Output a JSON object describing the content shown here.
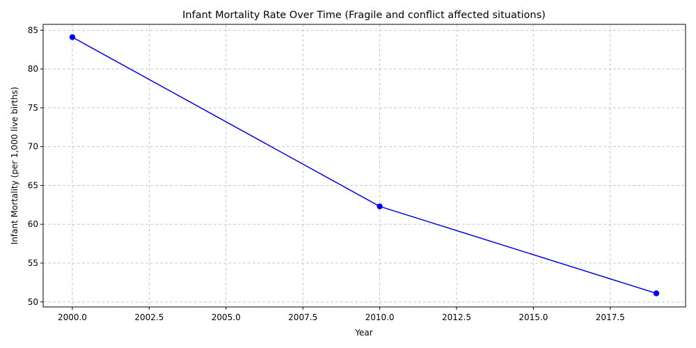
{
  "chart_data": {
    "type": "line",
    "title": "Infant Mortality Rate Over Time (Fragile and conflict affected situations)",
    "xlabel": "Year",
    "ylabel": "Infant Mortality (per 1,000 live births)",
    "xlim": [
      1999.05,
      2019.95
    ],
    "ylim": [
      49.35,
      85.75
    ],
    "x_ticks": [
      2000.0,
      2002.5,
      2005.0,
      2007.5,
      2010.0,
      2012.5,
      2015.0,
      2017.5
    ],
    "x_tick_labels": [
      "2000.0",
      "2002.5",
      "2005.0",
      "2007.5",
      "2010.0",
      "2012.5",
      "2015.0",
      "2017.5"
    ],
    "y_ticks": [
      50,
      55,
      60,
      65,
      70,
      75,
      80,
      85
    ],
    "y_tick_labels": [
      "50",
      "55",
      "60",
      "65",
      "70",
      "75",
      "80",
      "85"
    ],
    "grid": true,
    "series": [
      {
        "color": "#0000ee",
        "marker": "circle",
        "x": [
          2000,
          2010,
          2019
        ],
        "y": [
          84.1,
          62.3,
          51.1
        ]
      }
    ]
  }
}
